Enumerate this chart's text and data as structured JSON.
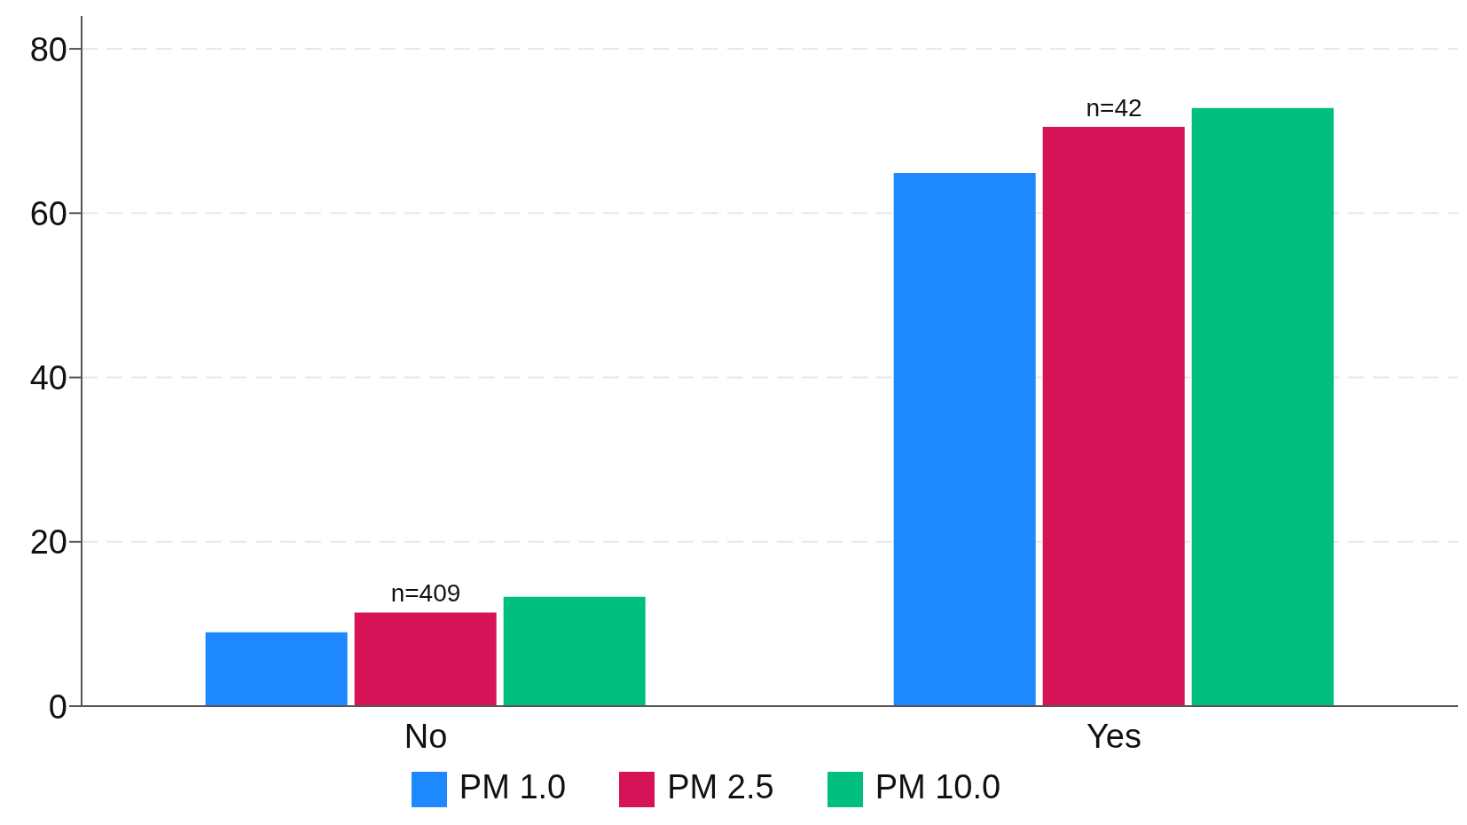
{
  "chart_data": {
    "type": "bar",
    "categories": [
      "No",
      "Yes"
    ],
    "series": [
      {
        "name": "PM 1.0",
        "color": "#1e88ff",
        "values": [
          9.0,
          64.9
        ]
      },
      {
        "name": "PM 2.5",
        "color": "#d61356",
        "values": [
          11.4,
          70.5
        ]
      },
      {
        "name": "PM 10.0",
        "color": "#00bf7f",
        "values": [
          13.3,
          72.8
        ]
      }
    ],
    "ylim": [
      0,
      84
    ],
    "yticks": [
      0,
      20,
      40,
      60,
      80
    ],
    "grid": "y",
    "legend": "bottom",
    "annotations": [
      {
        "text": "n=409",
        "x": "No",
        "y": 11.4
      },
      {
        "text": "n=42",
        "x": "Yes",
        "y": 70.5
      }
    ]
  }
}
